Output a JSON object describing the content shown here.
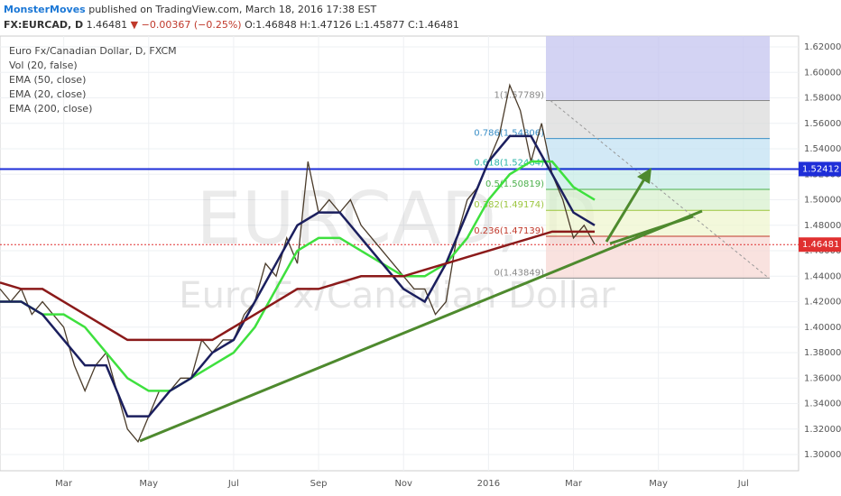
{
  "header": {
    "author": "MonsterMoves",
    "published": "published on TradingView.com, March 18, 2016 17:38 EST",
    "symbol": "FX:EURCAD, D",
    "last": "1.46481",
    "arrow": "▼",
    "change": "−0.00367 (−0.25%)",
    "ohlc": "O:1.46848 H:1.47126 L:1.45877 C:1.46481"
  },
  "chart_data": {
    "type": "line",
    "watermark": "EURCAD, D",
    "watermark_sub": "Euro Fx/Canadian Dollar",
    "volume_label": "Vol (20, false)",
    "xlim": [
      0.5,
      19.3
    ],
    "xticks": [
      {
        "value": 2,
        "label": "Mar"
      },
      {
        "value": 4,
        "label": "May"
      },
      {
        "value": 6,
        "label": "Jul"
      },
      {
        "value": 8,
        "label": "Sep"
      },
      {
        "value": 10,
        "label": "Nov"
      },
      {
        "value": 12,
        "label": "2016"
      },
      {
        "value": 14,
        "label": "Mar"
      },
      {
        "value": 16,
        "label": "May"
      },
      {
        "value": 18,
        "label": "Jul"
      }
    ],
    "ylim": [
      1.2873,
      1.6285
    ],
    "yticks": [
      {
        "value": 1.3,
        "label": "1.30000"
      },
      {
        "value": 1.32,
        "label": "1.32000"
      },
      {
        "value": 1.34,
        "label": "1.34000"
      },
      {
        "value": 1.36,
        "label": "1.36000"
      },
      {
        "value": 1.38,
        "label": "1.38000"
      },
      {
        "value": 1.4,
        "label": "1.40000"
      },
      {
        "value": 1.42,
        "label": "1.42000"
      },
      {
        "value": 1.44,
        "label": "1.44000"
      },
      {
        "value": 1.46,
        "label": "1.46000"
      },
      {
        "value": 1.48,
        "label": "1.48000"
      },
      {
        "value": 1.5,
        "label": "1.50000"
      },
      {
        "value": 1.52,
        "label": "1.52000"
      },
      {
        "value": 1.54,
        "label": "1.54000"
      },
      {
        "value": 1.56,
        "label": "1.56000"
      },
      {
        "value": 1.58,
        "label": "1.58000"
      },
      {
        "value": 1.6,
        "label": "1.60000"
      },
      {
        "value": 1.62,
        "label": "1.62000"
      }
    ],
    "grid": true,
    "series": [
      {
        "name": "Euro Fx/Canadian Dollar, D, FXCM",
        "color": "#4a3b2a",
        "x": [
          0.5,
          0.75,
          1,
          1.25,
          1.5,
          1.75,
          2,
          2.25,
          2.5,
          2.75,
          3,
          3.25,
          3.5,
          3.75,
          4,
          4.25,
          4.5,
          4.75,
          5,
          5.25,
          5.5,
          5.75,
          6,
          6.25,
          6.5,
          6.75,
          7,
          7.25,
          7.5,
          7.75,
          8,
          8.25,
          8.5,
          8.75,
          9,
          9.25,
          9.5,
          9.75,
          10,
          10.25,
          10.5,
          10.75,
          11,
          11.25,
          11.5,
          11.75,
          12,
          12.25,
          12.5,
          12.75,
          13,
          13.25,
          13.5,
          13.75,
          14,
          14.25,
          14.5
        ],
        "values": [
          1.43,
          1.42,
          1.43,
          1.41,
          1.42,
          1.41,
          1.4,
          1.37,
          1.35,
          1.37,
          1.38,
          1.35,
          1.32,
          1.31,
          1.33,
          1.35,
          1.35,
          1.36,
          1.36,
          1.39,
          1.38,
          1.39,
          1.39,
          1.41,
          1.42,
          1.45,
          1.44,
          1.47,
          1.45,
          1.53,
          1.49,
          1.5,
          1.49,
          1.5,
          1.48,
          1.47,
          1.46,
          1.45,
          1.44,
          1.43,
          1.43,
          1.41,
          1.42,
          1.47,
          1.5,
          1.51,
          1.53,
          1.55,
          1.59,
          1.57,
          1.53,
          1.56,
          1.52,
          1.5,
          1.47,
          1.48,
          1.465
        ]
      },
      {
        "name": "EMA (50, close)",
        "color": "#3ee03e",
        "x": [
          0.5,
          1,
          1.5,
          2,
          2.5,
          3,
          3.5,
          4,
          4.5,
          5,
          5.5,
          6,
          6.5,
          7,
          7.5,
          8,
          8.5,
          9,
          9.5,
          10,
          10.5,
          11,
          11.5,
          12,
          12.5,
          13,
          13.5,
          14,
          14.5
        ],
        "values": [
          1.42,
          1.42,
          1.41,
          1.41,
          1.4,
          1.38,
          1.36,
          1.35,
          1.35,
          1.36,
          1.37,
          1.38,
          1.4,
          1.43,
          1.46,
          1.47,
          1.47,
          1.46,
          1.45,
          1.44,
          1.44,
          1.45,
          1.47,
          1.5,
          1.52,
          1.53,
          1.53,
          1.51,
          1.5
        ]
      },
      {
        "name": "EMA (20, close)",
        "color": "#1b1f5e",
        "x": [
          0.5,
          1,
          1.5,
          2,
          2.5,
          3,
          3.5,
          4,
          4.5,
          5,
          5.5,
          6,
          6.5,
          7,
          7.5,
          8,
          8.5,
          9,
          9.5,
          10,
          10.5,
          11,
          11.5,
          12,
          12.5,
          13,
          13.5,
          14,
          14.5
        ],
        "values": [
          1.42,
          1.42,
          1.41,
          1.39,
          1.37,
          1.37,
          1.33,
          1.33,
          1.35,
          1.36,
          1.38,
          1.39,
          1.42,
          1.45,
          1.48,
          1.49,
          1.49,
          1.47,
          1.45,
          1.43,
          1.42,
          1.45,
          1.49,
          1.53,
          1.55,
          1.55,
          1.52,
          1.49,
          1.48
        ]
      },
      {
        "name": "EMA (200, close)",
        "color": "#8b1a1a",
        "x": [
          0.5,
          1,
          1.5,
          2,
          2.5,
          3,
          3.5,
          4,
          4.5,
          5,
          5.5,
          6,
          6.5,
          7,
          7.5,
          8,
          8.5,
          9,
          9.5,
          10,
          10.5,
          11,
          11.5,
          12,
          12.5,
          13,
          13.5,
          14,
          14.5
        ],
        "values": [
          1.435,
          1.43,
          1.43,
          1.42,
          1.41,
          1.4,
          1.39,
          1.39,
          1.39,
          1.39,
          1.39,
          1.4,
          1.41,
          1.42,
          1.43,
          1.43,
          1.435,
          1.44,
          1.44,
          1.44,
          1.445,
          1.45,
          1.455,
          1.46,
          1.465,
          1.47,
          1.475,
          1.475,
          1.475
        ]
      }
    ],
    "hlines": [
      {
        "value": 1.52412,
        "color": "#1e2ed8"
      },
      {
        "value": 1.46481,
        "color": "#e03030"
      }
    ],
    "fib": [
      {
        "value": 1.57789,
        "label": "1(1.57789)",
        "color": "#888888"
      },
      {
        "value": 1.54806,
        "label": "0.786(1.54806)",
        "color": "#3a8fc7"
      },
      {
        "value": 1.52464,
        "label": "0.618(1.52464)",
        "color": "#2bb5a8"
      },
      {
        "value": 1.50819,
        "label": "0.5(1.50819)",
        "color": "#4cb04c"
      },
      {
        "value": 1.49174,
        "label": "0.382(1.49174)",
        "color": "#9bc53d"
      },
      {
        "value": 1.47139,
        "label": "0.236(1.47139)",
        "color": "#c0392b"
      },
      {
        "value": 1.43849,
        "label": "0(1.43849)",
        "color": "#888888"
      }
    ]
  }
}
